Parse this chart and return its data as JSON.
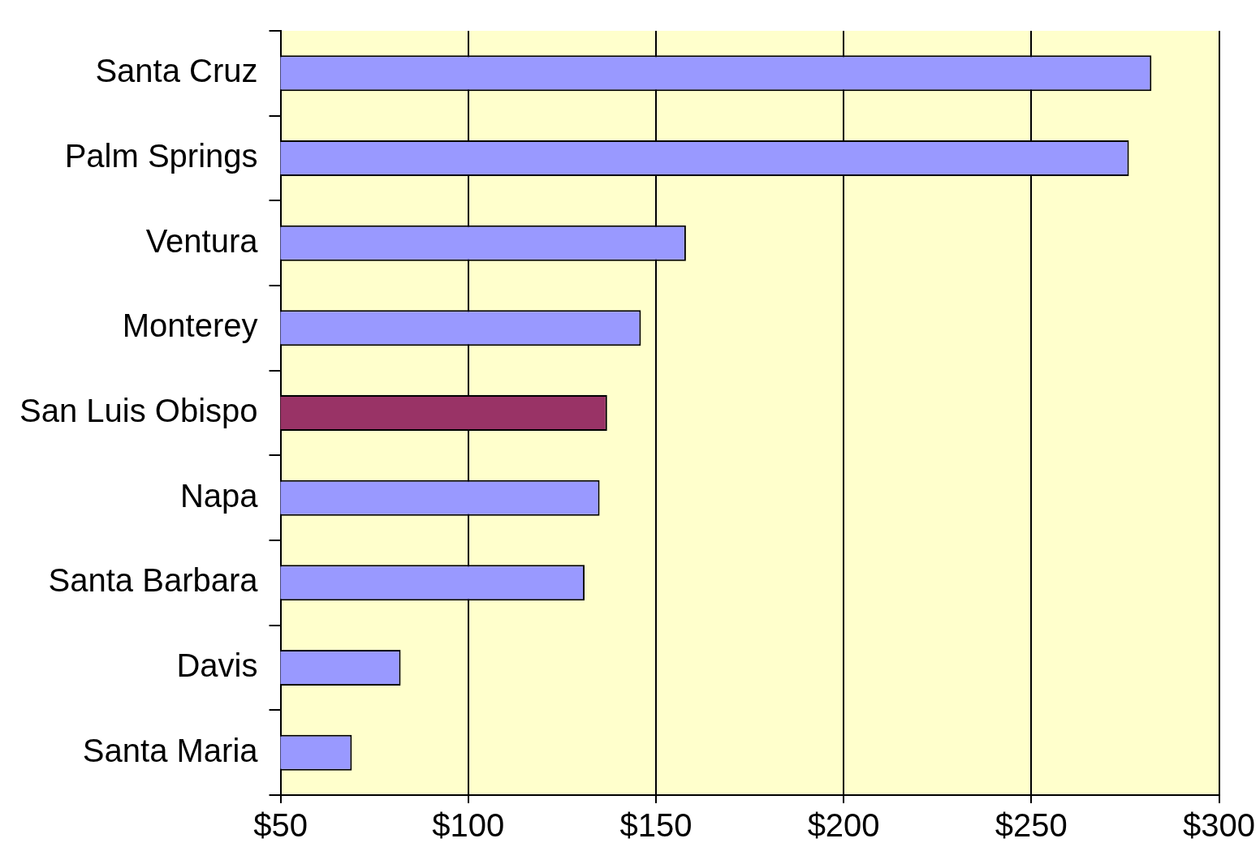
{
  "chart_data": {
    "type": "bar",
    "orientation": "horizontal",
    "categories": [
      "Santa Cruz",
      "Palm Springs",
      "Ventura",
      "Monterey",
      "San Luis Obispo",
      "Napa",
      "Santa Barbara",
      "Davis",
      "Santa Maria"
    ],
    "values": [
      282,
      276,
      158,
      146,
      137,
      135,
      131,
      82,
      69
    ],
    "colors": [
      "#9999ff",
      "#9999ff",
      "#9999ff",
      "#9999ff",
      "#993366",
      "#9999ff",
      "#9999ff",
      "#9999ff",
      "#9999ff"
    ],
    "xlim": [
      50,
      300
    ],
    "xticks": [
      {
        "value": 50,
        "label": "$50"
      },
      {
        "value": 100,
        "label": "$100"
      },
      {
        "value": 150,
        "label": "$150"
      },
      {
        "value": 200,
        "label": "$200"
      },
      {
        "value": 250,
        "label": "$250"
      },
      {
        "value": 300,
        "label": "$300"
      }
    ],
    "grid": "x",
    "legend": false
  }
}
